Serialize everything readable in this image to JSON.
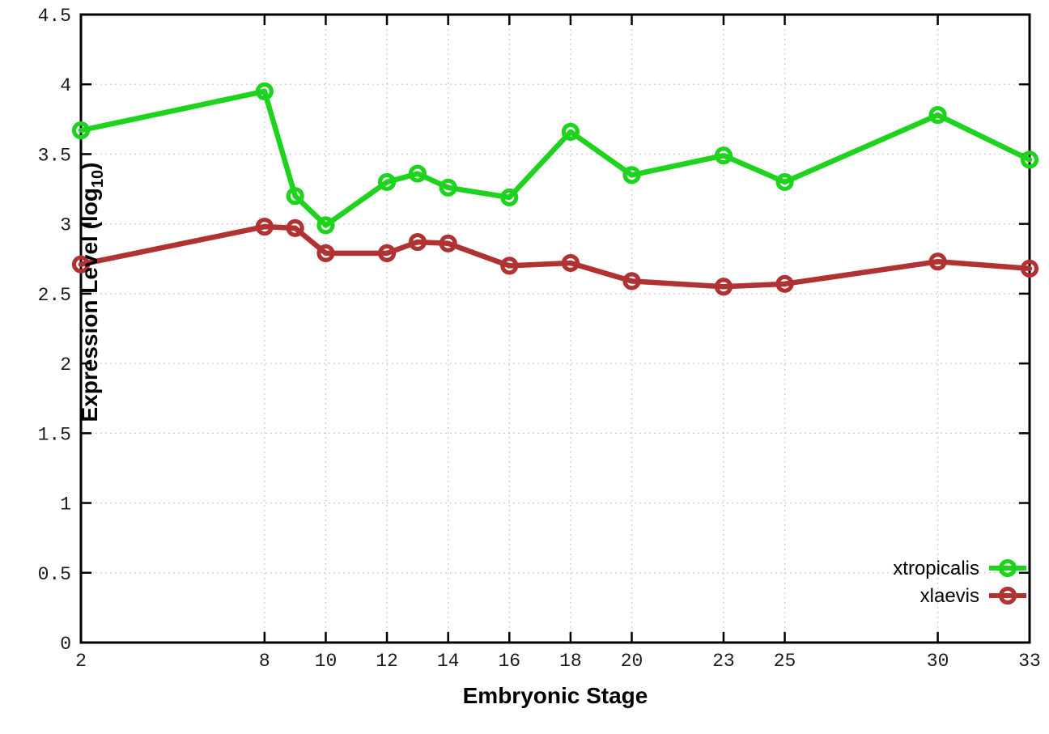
{
  "chart_data": {
    "type": "line",
    "title": "",
    "xlabel": "Embryonic Stage",
    "ylabel": {
      "full_text": "Expression Level (log10)",
      "prefix": "Expression Level (log",
      "sub": "10",
      "suffix": ")"
    },
    "x": [
      2,
      8,
      9,
      10,
      12,
      13,
      14,
      16,
      18,
      20,
      23,
      25,
      30,
      33
    ],
    "series": [
      {
        "name": "xtropicalis",
        "color": "#1dd31d",
        "values": [
          3.67,
          3.95,
          3.2,
          2.99,
          3.3,
          3.36,
          3.26,
          3.19,
          3.66,
          3.35,
          3.49,
          3.3,
          3.78,
          3.46
        ]
      },
      {
        "name": "xlaevis",
        "color": "#b03232",
        "values": [
          2.71,
          2.98,
          2.97,
          2.79,
          2.79,
          2.87,
          2.86,
          2.7,
          2.72,
          2.59,
          2.55,
          2.57,
          2.73,
          2.68
        ]
      }
    ],
    "xlim": [
      2,
      33
    ],
    "ylim": [
      0,
      4.5
    ],
    "xticks": [
      2,
      8,
      10,
      12,
      14,
      16,
      18,
      20,
      23,
      25,
      30,
      33
    ],
    "yticks": [
      0,
      0.5,
      1,
      1.5,
      2,
      2.5,
      3,
      3.5,
      4,
      4.5
    ],
    "grid": true,
    "legend_position": "inside-bottom-right",
    "legend_entries": [
      "xtropicalis",
      "xlaevis"
    ]
  },
  "colors": {
    "background": "#ffffff",
    "grid": "#c4c4c4",
    "axis": "#000000",
    "tick_text": "#1a1a1a",
    "series_green": "#1dd31d",
    "series_red": "#b03232"
  }
}
